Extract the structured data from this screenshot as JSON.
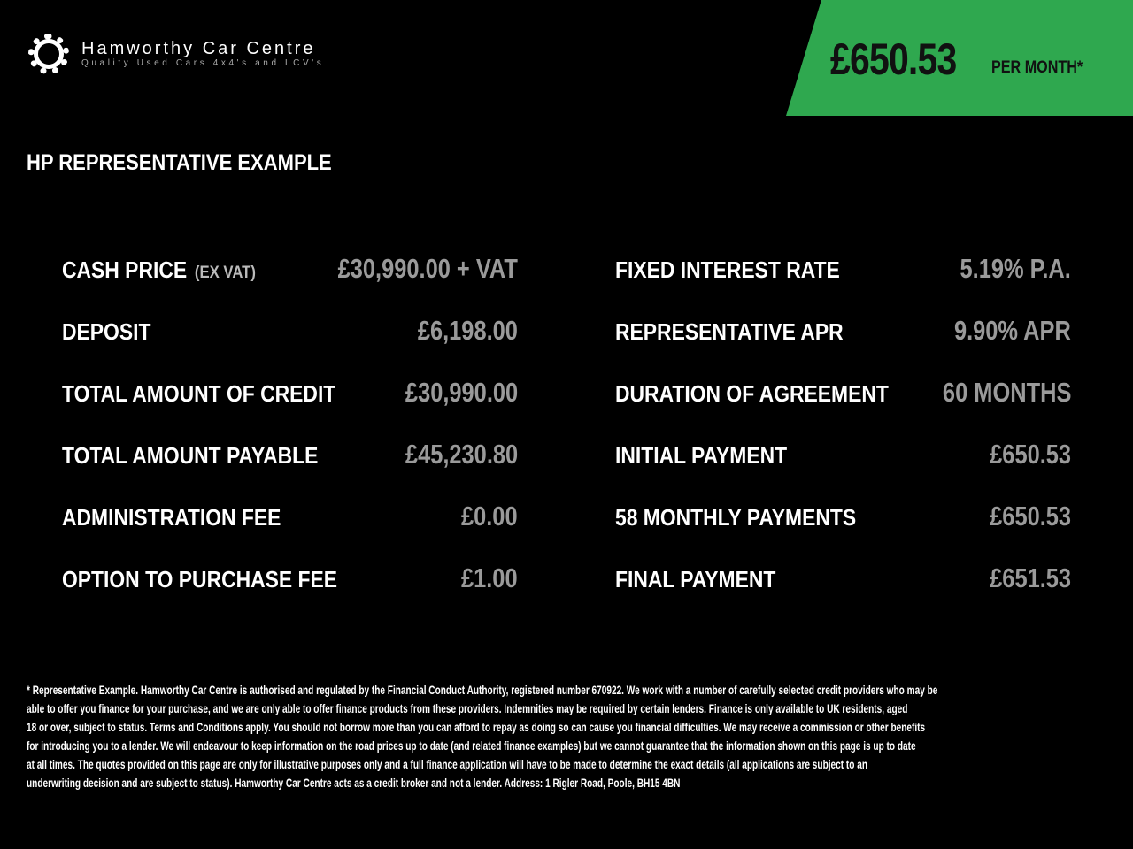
{
  "brand": {
    "name": "Hamworthy Car Centre",
    "tagline": "Quality Used Cars 4x4's and LCV's",
    "logo_icon": "gear-ring-icon"
  },
  "banner": {
    "amount": "£650.53",
    "per": "PER MONTH*",
    "color": "#2fa84f"
  },
  "heading": "HP REPRESENTATIVE EXAMPLE",
  "left": [
    {
      "label": "CASH PRICE",
      "sub": "(EX VAT)",
      "value": "£30,990.00 + VAT"
    },
    {
      "label": "DEPOSIT",
      "sub": "",
      "value": "£6,198.00"
    },
    {
      "label": "TOTAL AMOUNT OF CREDIT",
      "sub": "",
      "value": "£30,990.00"
    },
    {
      "label": "TOTAL AMOUNT PAYABLE",
      "sub": "",
      "value": "£45,230.80"
    },
    {
      "label": "ADMINISTRATION FEE",
      "sub": "",
      "value": "£0.00"
    },
    {
      "label": "OPTION TO PURCHASE FEE",
      "sub": "",
      "value": "£1.00"
    }
  ],
  "right": [
    {
      "label": "FIXED INTEREST RATE",
      "value": "5.19% P.A."
    },
    {
      "label": "REPRESENTATIVE APR",
      "value": "9.90% APR"
    },
    {
      "label": "DURATION OF AGREEMENT",
      "value": "60 MONTHS"
    },
    {
      "label": "INITIAL PAYMENT",
      "value": "£650.53"
    },
    {
      "label": "58 MONTHLY PAYMENTS",
      "value": "£650.53"
    },
    {
      "label": "FINAL PAYMENT",
      "value": "£651.53"
    }
  ],
  "disclaimer": [
    "* Representative Example. Hamworthy Car Centre is authorised and regulated by the Financial Conduct Authority, registered number 670922. We work with a number of carefully selected credit providers who may be",
    "able to offer you finance for your purchase, and we are only able to offer finance products from these providers. Indemnities may be required by certain lenders. Finance is only available to UK residents, aged",
    "18 or over, subject to status. Terms and Conditions apply. You should not borrow more than you can afford to repay as doing so can cause you financial difficulties. We may receive a commission or other benefits",
    "for introducing you to a lender. We will endeavour to keep information on the road prices up to date (and related finance examples) but we cannot guarantee that the information shown on this page is up to date",
    "at all times. The quotes provided on this page are only for illustrative purposes only and a full finance application will have to be made to determine the exact details (all applications are subject to an",
    "underwriting decision and are subject to status). Hamworthy Car Centre acts as a credit broker and not a lender. Address: 1 Rigler Road, Poole, BH15 4BN"
  ]
}
